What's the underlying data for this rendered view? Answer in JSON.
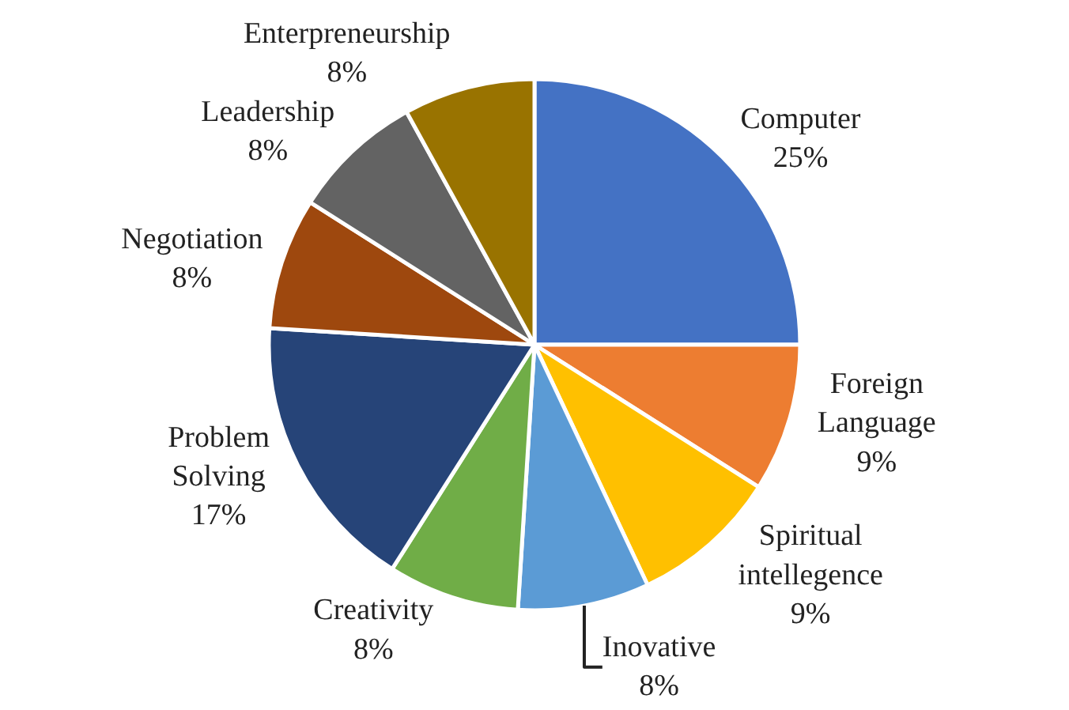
{
  "chart_data": {
    "type": "pie",
    "categories": [
      "Computer",
      "Foreign Language",
      "Spiritual intellegence",
      "Inovative",
      "Creativity",
      "Problem Solving",
      "Negotiation",
      "Leadership",
      "Enterpreneurship"
    ],
    "values": [
      25,
      9,
      9,
      8,
      8,
      17,
      8,
      8,
      8
    ],
    "value_labels": [
      "25%",
      "9%",
      "9%",
      "8%",
      "8%",
      "17%",
      "8%",
      "8%",
      "8%"
    ],
    "colors": [
      "#4472c4",
      "#ed7d31",
      "#ffc000",
      "#5b9bd5",
      "#70ad47",
      "#264478",
      "#9e480e",
      "#636363",
      "#997300"
    ],
    "legend": false
  }
}
